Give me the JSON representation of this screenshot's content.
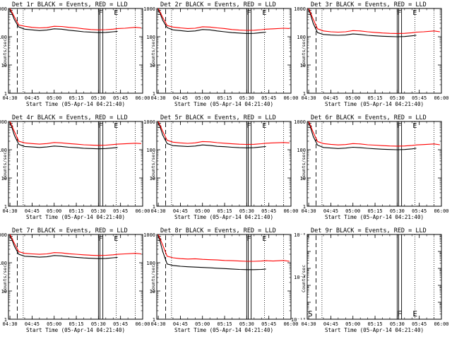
{
  "x_tick_labels": [
    "04:30",
    "04:45",
    "05:00",
    "05:15",
    "05:30",
    "05:45",
    "06:00"
  ],
  "x_label": "Start Time (05-Apr-14 04:21:40)",
  "y_label": "Counts/sec",
  "marker_labels": {
    "start": "S",
    "flag_f": "F",
    "flag_e": "E"
  },
  "colors": {
    "events": "#000000",
    "lld": "#ff0000"
  },
  "chart_data": [
    {
      "type": "line",
      "title": "Det 1r BLACK = Events, RED = LLD",
      "yscale": "log",
      "ylim": [
        1,
        1000
      ],
      "xlim": [
        "04:29",
        "06:00"
      ],
      "y_tick_labels": [
        "1",
        "10",
        "100",
        "1000"
      ],
      "x": [
        "04:30",
        "04:33",
        "04:36",
        "04:40",
        "04:45",
        "04:50",
        "04:55",
        "05:00",
        "05:05",
        "05:10",
        "05:15",
        "05:20",
        "05:25",
        "05:30",
        "05:35",
        "05:40",
        "05:43",
        "05:48",
        "05:55",
        "05:59"
      ],
      "series": [
        {
          "name": "BLACK = Events",
          "color": "#000000",
          "values": [
            1000,
            400,
            220,
            185,
            175,
            165,
            172,
            190,
            185,
            170,
            160,
            150,
            145,
            140,
            142,
            150,
            155,
            null,
            null,
            null
          ]
        },
        {
          "name": "RED = LLD",
          "color": "#ff0000",
          "values": [
            1000,
            500,
            260,
            235,
            215,
            205,
            210,
            235,
            230,
            215,
            205,
            190,
            180,
            175,
            178,
            185,
            195,
            200,
            215,
            205
          ]
        }
      ]
    },
    {
      "type": "line",
      "title": "Det 2r BLACK = Events, RED = LLD",
      "yscale": "log",
      "ylim": [
        1,
        1000
      ],
      "xlim": [
        "04:29",
        "06:00"
      ],
      "y_tick_labels": [
        "1",
        "10",
        "100",
        "1000"
      ],
      "x": [
        "04:30",
        "04:33",
        "04:36",
        "04:40",
        "04:45",
        "04:50",
        "04:55",
        "05:00",
        "05:05",
        "05:10",
        "05:15",
        "05:20",
        "05:25",
        "05:30",
        "05:35",
        "05:40",
        "05:43",
        "05:48",
        "05:55",
        "05:59"
      ],
      "series": [
        {
          "name": "BLACK = Events",
          "color": "#000000",
          "values": [
            1000,
            380,
            210,
            175,
            165,
            155,
            160,
            180,
            175,
            160,
            150,
            140,
            135,
            130,
            132,
            140,
            145,
            null,
            null,
            null
          ]
        },
        {
          "name": "RED = LLD",
          "color": "#ff0000",
          "values": [
            1000,
            480,
            250,
            220,
            205,
            195,
            200,
            225,
            220,
            205,
            195,
            180,
            172,
            168,
            170,
            178,
            185,
            190,
            200,
            195
          ]
        }
      ]
    },
    {
      "type": "line",
      "title": "Det 3r BLACK = Events, RED = LLD",
      "yscale": "log",
      "ylim": [
        1,
        1000
      ],
      "xlim": [
        "04:29",
        "06:00"
      ],
      "y_tick_labels": [
        "1",
        "10",
        "100",
        "1000"
      ],
      "x": [
        "04:30",
        "04:33",
        "04:36",
        "04:40",
        "04:45",
        "04:50",
        "04:55",
        "05:00",
        "05:05",
        "05:10",
        "05:15",
        "05:20",
        "05:25",
        "05:30",
        "05:35",
        "05:40",
        "05:43",
        "05:48",
        "05:55",
        "05:59"
      ],
      "series": [
        {
          "name": "BLACK = Events",
          "color": "#000000",
          "values": [
            1000,
            300,
            140,
            120,
            115,
            112,
            115,
            125,
            120,
            112,
            108,
            104,
            102,
            100,
            102,
            108,
            112,
            null,
            null,
            null
          ]
        },
        {
          "name": "RED = LLD",
          "color": "#ff0000",
          "values": [
            1000,
            420,
            190,
            160,
            150,
            145,
            150,
            165,
            160,
            150,
            142,
            136,
            132,
            130,
            132,
            138,
            145,
            150,
            160,
            150
          ]
        }
      ]
    },
    {
      "type": "line",
      "title": "Det 4r BLACK = Events, RED = LLD",
      "yscale": "log",
      "ylim": [
        1,
        1000
      ],
      "xlim": [
        "04:29",
        "06:00"
      ],
      "y_tick_labels": [
        "1",
        "10",
        "100",
        "1000"
      ],
      "x": [
        "04:30",
        "04:33",
        "04:36",
        "04:40",
        "04:45",
        "04:50",
        "04:55",
        "05:00",
        "05:05",
        "05:10",
        "05:15",
        "05:20",
        "05:25",
        "05:30",
        "05:35",
        "05:40",
        "05:43",
        "05:48",
        "05:55",
        "05:59"
      ],
      "series": [
        {
          "name": "BLACK = Events",
          "color": "#000000",
          "values": [
            1000,
            320,
            155,
            130,
            125,
            120,
            125,
            135,
            130,
            122,
            118,
            113,
            110,
            108,
            110,
            116,
            120,
            null,
            null,
            null
          ]
        },
        {
          "name": "RED = LLD",
          "color": "#ff0000",
          "values": [
            1000,
            440,
            200,
            175,
            165,
            158,
            165,
            180,
            175,
            165,
            158,
            150,
            146,
            143,
            145,
            152,
            158,
            162,
            170,
            165
          ]
        }
      ]
    },
    {
      "type": "line",
      "title": "Det 5r BLACK = Events, RED = LLD",
      "yscale": "log",
      "ylim": [
        1,
        1000
      ],
      "xlim": [
        "04:29",
        "06:00"
      ],
      "y_tick_labels": [
        "1",
        "10",
        "100",
        "1000"
      ],
      "x": [
        "04:30",
        "04:33",
        "04:36",
        "04:40",
        "04:45",
        "04:50",
        "04:55",
        "05:00",
        "05:05",
        "05:10",
        "05:15",
        "05:20",
        "05:25",
        "05:30",
        "05:35",
        "05:40",
        "05:43",
        "05:48",
        "05:55",
        "05:59"
      ],
      "series": [
        {
          "name": "BLACK = Events",
          "color": "#000000",
          "values": [
            1000,
            330,
            165,
            140,
            135,
            130,
            135,
            148,
            142,
            132,
            128,
            122,
            118,
            116,
            118,
            125,
            130,
            null,
            null,
            null
          ]
        },
        {
          "name": "RED = LLD",
          "color": "#ff0000",
          "values": [
            1000,
            450,
            215,
            185,
            175,
            168,
            175,
            195,
            190,
            178,
            170,
            162,
            157,
            154,
            156,
            163,
            170,
            175,
            180,
            175
          ]
        }
      ]
    },
    {
      "type": "line",
      "title": "Det 6r BLACK = Events, RED = LLD",
      "yscale": "log",
      "ylim": [
        1,
        1000
      ],
      "xlim": [
        "04:29",
        "06:00"
      ],
      "y_tick_labels": [
        "1",
        "10",
        "100",
        "1000"
      ],
      "x": [
        "04:30",
        "04:33",
        "04:36",
        "04:40",
        "04:45",
        "04:50",
        "04:55",
        "05:00",
        "05:05",
        "05:10",
        "05:15",
        "05:20",
        "05:25",
        "05:30",
        "05:35",
        "05:40",
        "05:43",
        "05:48",
        "05:55",
        "05:59"
      ],
      "series": [
        {
          "name": "BLACK = Events",
          "color": "#000000",
          "values": [
            1000,
            300,
            145,
            120,
            115,
            110,
            114,
            122,
            118,
            112,
            108,
            104,
            102,
            100,
            102,
            107,
            112,
            null,
            null,
            null
          ]
        },
        {
          "name": "RED = LLD",
          "color": "#ff0000",
          "values": [
            1000,
            420,
            195,
            165,
            155,
            148,
            152,
            165,
            160,
            150,
            145,
            140,
            136,
            134,
            136,
            142,
            148,
            152,
            160,
            150
          ]
        }
      ]
    },
    {
      "type": "line",
      "title": "Det 7r BLACK = Events, RED = LLD",
      "yscale": "log",
      "ylim": [
        1,
        1000
      ],
      "xlim": [
        "04:29",
        "06:00"
      ],
      "y_tick_labels": [
        "1",
        "10",
        "100",
        "1000"
      ],
      "x": [
        "04:30",
        "04:33",
        "04:36",
        "04:40",
        "04:45",
        "04:50",
        "04:55",
        "05:00",
        "05:05",
        "05:10",
        "05:15",
        "05:20",
        "05:25",
        "05:30",
        "05:35",
        "05:40",
        "05:43",
        "05:48",
        "05:55",
        "05:59"
      ],
      "series": [
        {
          "name": "BLACK = Events",
          "color": "#000000",
          "values": [
            1000,
            380,
            200,
            170,
            165,
            158,
            162,
            180,
            175,
            162,
            155,
            148,
            144,
            140,
            142,
            150,
            155,
            null,
            null,
            null
          ]
        },
        {
          "name": "RED = LLD",
          "color": "#ff0000",
          "values": [
            1000,
            480,
            245,
            215,
            205,
            198,
            205,
            228,
            222,
            208,
            200,
            190,
            184,
            180,
            183,
            190,
            198,
            205,
            215,
            205
          ]
        }
      ]
    },
    {
      "type": "line",
      "title": "Det 8r BLACK = Events, RED = LLD",
      "yscale": "log",
      "ylim": [
        1,
        1000
      ],
      "xlim": [
        "04:29",
        "06:00"
      ],
      "y_tick_labels": [
        "1",
        "10",
        "100",
        "1000"
      ],
      "x": [
        "04:30",
        "04:33",
        "04:36",
        "04:40",
        "04:45",
        "04:50",
        "04:55",
        "05:00",
        "05:05",
        "05:10",
        "05:15",
        "05:20",
        "05:25",
        "05:30",
        "05:35",
        "05:40",
        "05:43",
        "05:48",
        "05:55",
        "05:59"
      ],
      "series": [
        {
          "name": "BLACK = Events",
          "color": "#000000",
          "values": [
            1000,
            250,
            90,
            80,
            75,
            72,
            70,
            68,
            66,
            64,
            62,
            60,
            58,
            57,
            57,
            58,
            60,
            null,
            null,
            null
          ]
        },
        {
          "name": "RED = LLD",
          "color": "#ff0000",
          "values": [
            1000,
            420,
            170,
            150,
            140,
            135,
            138,
            132,
            128,
            125,
            120,
            118,
            115,
            112,
            112,
            115,
            118,
            115,
            120,
            112
          ]
        }
      ]
    },
    {
      "type": "line",
      "title": "Det 9r BLACK = Events, RED = LLD",
      "yscale": "log",
      "ylim": [
        1e-10,
        1e-05
      ],
      "xlim": [
        "04:29",
        "06:00"
      ],
      "y_tick_labels": [
        "10⁻¹⁰",
        "10⁻⁸",
        "10⁻⁶"
      ],
      "x": [],
      "series": []
    }
  ]
}
